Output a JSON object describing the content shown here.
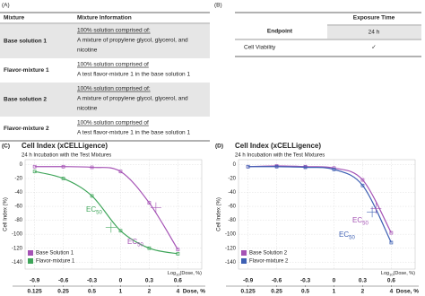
{
  "panel_a": {
    "label": "(A)",
    "header": [
      "Mixture",
      "Mixture Information"
    ],
    "rows": [
      {
        "mixture": "Base solution 1",
        "info": [
          "100% solution comprised of:",
          "A mixture of propylene glycol, glycerol, and",
          "nicotine"
        ]
      },
      {
        "mixture": "Flavor-mixture 1",
        "info": [
          "100% solution comprised of",
          "A test flavor-mixture 1 in the base solution 1"
        ]
      },
      {
        "mixture": "Base solution 2",
        "info": [
          "100% solution comprised of:",
          "A mixture of propylene glycol, glycerol, and",
          "nicotine"
        ]
      },
      {
        "mixture": "Flavor-mixture 2",
        "info": [
          "100% solution comprised of",
          "A test flavor-mixture 1 in the base solution 1"
        ]
      }
    ]
  },
  "panel_b": {
    "label": "(B)",
    "header": [
      "Endpoint",
      "Exposure Time"
    ],
    "subheader": "24 h",
    "rows": [
      [
        "Cell Viability",
        "✓"
      ]
    ]
  },
  "chart_data": [
    {
      "type": "line",
      "panel": "(C)",
      "title": "Cell Index (xCELLigence)",
      "subtitle": "24 h Incubation with the Test Mixtures",
      "y_label": "Cell Index (%)",
      "x_label": [
        "Log",
        "10",
        "(Dose, %)"
      ],
      "dose_label": "Dose, %",
      "xlim": [
        -1.0,
        0.85
      ],
      "xticks": [
        -0.9,
        -0.6,
        -0.3,
        0,
        0.3,
        0.6
      ],
      "dose_ticks": [
        {
          "value": -0.9,
          "label": "0.125"
        },
        {
          "value": -0.6,
          "label": "0.25"
        },
        {
          "value": -0.3,
          "label": "0.5"
        },
        {
          "value": 0,
          "label": "1"
        },
        {
          "value": 0.3,
          "label": "2"
        },
        {
          "value": 0.6,
          "label": "4"
        }
      ],
      "ylim": [
        -150,
        7
      ],
      "yticks": [
        0,
        -20,
        -40,
        -60,
        -80,
        -100,
        -120,
        -140
      ],
      "grid": true,
      "annotations": [
        [
          "EC",
          "50"
        ],
        [
          "EC",
          "50"
        ]
      ],
      "series": [
        {
          "name": "Base Solution 1",
          "color": "#a553b5",
          "x": [
            -0.9,
            -0.6,
            -0.3,
            0,
            0.3,
            0.6
          ],
          "values": [
            -3,
            -3,
            -4,
            -10,
            -55,
            -122
          ]
        },
        {
          "name": "Flavor-mixture 1",
          "color": "#3fa55a",
          "x": [
            -0.9,
            -0.6,
            -0.3,
            0,
            0.3,
            0.6
          ],
          "values": [
            -10,
            -20,
            -45,
            -95,
            -120,
            -128
          ]
        }
      ]
    },
    {
      "type": "line",
      "panel": "(D)",
      "title": "Cell Index (xCELLigence)",
      "subtitle": "24 h Incubation with the Test Mixtures",
      "y_label": "Cell Index (%)",
      "x_label": [
        "Log",
        "10",
        "(Dose, %)"
      ],
      "dose_label": "Dose, %",
      "xlim": [
        -1.0,
        0.85
      ],
      "xticks": [
        -0.9,
        -0.6,
        -0.3,
        0,
        0.3,
        0.6
      ],
      "dose_ticks": [
        {
          "value": -0.9,
          "label": "0.125"
        },
        {
          "value": -0.6,
          "label": "0.25"
        },
        {
          "value": -0.3,
          "label": "0.5"
        },
        {
          "value": 0,
          "label": "1"
        },
        {
          "value": 0.3,
          "label": "2"
        },
        {
          "value": 0.6,
          "label": "4"
        }
      ],
      "ylim": [
        -150,
        7
      ],
      "yticks": [
        0,
        -20,
        -40,
        -60,
        -80,
        -100,
        -120,
        -140
      ],
      "grid": true,
      "annotations": [
        [
          "EC",
          "50"
        ],
        [
          "EC",
          "50"
        ]
      ],
      "series": [
        {
          "name": "Base Solution 2",
          "color": "#a553b5",
          "x": [
            -0.9,
            -0.6,
            -0.3,
            0,
            0.3,
            0.6
          ],
          "values": [
            -3,
            -2,
            -3,
            -5,
            -22,
            -98
          ]
        },
        {
          "name": "Flavor-mixture 2",
          "color": "#3d5fb3",
          "x": [
            -0.9,
            -0.6,
            -0.3,
            0,
            0.3,
            0.6
          ],
          "values": [
            -3,
            -3,
            -4,
            -7,
            -30,
            -112
          ]
        }
      ]
    }
  ]
}
